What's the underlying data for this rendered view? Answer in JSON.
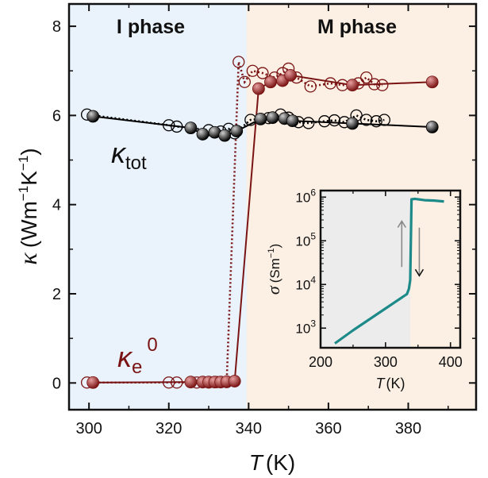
{
  "chart_data": [
    {
      "type": "scatter",
      "xlabel_var": "T",
      "xlabel_unit": "(K)",
      "ylabel_var": "κ",
      "ylabel_unit_open": "(Wm",
      "ylabel_unit_exp1": "−1",
      "ylabel_unit_mid": "K",
      "ylabel_unit_exp2": "−1",
      "ylabel_unit_close": ")",
      "xlim": [
        295,
        397
      ],
      "ylim": [
        -0.6,
        8.5
      ],
      "xticks": [
        300,
        320,
        340,
        360,
        380
      ],
      "yticks": [
        0,
        2,
        4,
        6,
        8
      ],
      "regions": [
        {
          "label": "I phase",
          "from": 295,
          "to": 339.5,
          "color": "#eaf3fc"
        },
        {
          "label": "M phase",
          "from": 339.5,
          "to": 397,
          "color": "#fcefe3"
        }
      ],
      "series": [
        {
          "name": "κtot",
          "label_main": "κ",
          "label_sub": "tot",
          "color": "#000000",
          "heating_filled": [
            {
              "x": 301,
              "y": 5.98
            },
            {
              "x": 325.5,
              "y": 5.72
            },
            {
              "x": 328.5,
              "y": 5.58
            },
            {
              "x": 331.5,
              "y": 5.62
            },
            {
              "x": 334,
              "y": 5.55
            },
            {
              "x": 337,
              "y": 5.65
            },
            {
              "x": 343,
              "y": 5.92
            },
            {
              "x": 346,
              "y": 5.95
            },
            {
              "x": 349,
              "y": 5.93
            },
            {
              "x": 351,
              "y": 5.88
            },
            {
              "x": 366,
              "y": 5.82
            },
            {
              "x": 386,
              "y": 5.74
            }
          ],
          "cooling_open": [
            {
              "x": 299.5,
              "y": 6.02
            },
            {
              "x": 320,
              "y": 5.78
            },
            {
              "x": 322,
              "y": 5.75
            },
            {
              "x": 330,
              "y": 5.67
            },
            {
              "x": 333,
              "y": 5.64
            },
            {
              "x": 335,
              "y": 5.7
            },
            {
              "x": 336.5,
              "y": 5.6
            },
            {
              "x": 340.5,
              "y": 5.9
            },
            {
              "x": 345,
              "y": 5.94
            },
            {
              "x": 348,
              "y": 6.02
            },
            {
              "x": 350,
              "y": 5.95
            },
            {
              "x": 352.5,
              "y": 5.85
            },
            {
              "x": 355,
              "y": 5.83
            },
            {
              "x": 359,
              "y": 5.87
            },
            {
              "x": 361.5,
              "y": 5.89
            },
            {
              "x": 364,
              "y": 5.85
            },
            {
              "x": 367,
              "y": 6.0
            },
            {
              "x": 369.5,
              "y": 5.9
            },
            {
              "x": 372,
              "y": 5.87
            },
            {
              "x": 374,
              "y": 5.9
            }
          ]
        },
        {
          "name": "κe0",
          "label_main": "κ",
          "label_sub": "e",
          "label_sup": "0",
          "color": "#7a1414",
          "heating_filled": [
            {
              "x": 301,
              "y": 0.01
            },
            {
              "x": 325.5,
              "y": 0.02
            },
            {
              "x": 328.5,
              "y": 0.02
            },
            {
              "x": 330,
              "y": 0.02
            },
            {
              "x": 331.5,
              "y": 0.02
            },
            {
              "x": 333,
              "y": 0.02
            },
            {
              "x": 334.5,
              "y": 0.03
            },
            {
              "x": 336.5,
              "y": 0.04
            },
            {
              "x": 342.5,
              "y": 6.6
            },
            {
              "x": 345.5,
              "y": 6.75
            },
            {
              "x": 348.5,
              "y": 6.78
            },
            {
              "x": 350.5,
              "y": 6.9
            },
            {
              "x": 366,
              "y": 6.68
            },
            {
              "x": 386,
              "y": 6.75
            }
          ],
          "cooling_open": [
            {
              "x": 299.5,
              "y": 0.01
            },
            {
              "x": 320,
              "y": 0.01
            },
            {
              "x": 322,
              "y": 0.01
            },
            {
              "x": 327,
              "y": 0.01
            },
            {
              "x": 330,
              "y": 0.01
            },
            {
              "x": 332,
              "y": 0.02
            },
            {
              "x": 334.5,
              "y": 0.02
            },
            {
              "x": 337.5,
              "y": 7.2
            },
            {
              "x": 339,
              "y": 6.75
            },
            {
              "x": 341,
              "y": 7.0
            },
            {
              "x": 343.5,
              "y": 6.95
            },
            {
              "x": 346.5,
              "y": 6.85
            },
            {
              "x": 348.5,
              "y": 6.95
            },
            {
              "x": 350,
              "y": 7.05
            },
            {
              "x": 352,
              "y": 6.85
            },
            {
              "x": 355.5,
              "y": 6.65
            },
            {
              "x": 360.5,
              "y": 6.72
            },
            {
              "x": 363.5,
              "y": 6.68
            },
            {
              "x": 367.5,
              "y": 6.72
            },
            {
              "x": 369.5,
              "y": 6.85
            },
            {
              "x": 371.5,
              "y": 6.7
            },
            {
              "x": 373.5,
              "y": 6.68
            }
          ]
        }
      ]
    },
    {
      "type": "line",
      "role": "inset",
      "xlabel_var": "T",
      "xlabel_unit": "(K)",
      "ylabel_var": "σ",
      "ylabel_unit_open": "(Sm",
      "ylabel_unit_exp": "−1",
      "ylabel_unit_close": ")",
      "yscale": "log",
      "xlim": [
        200,
        415
      ],
      "ylim_log10": [
        2.55,
        6.15
      ],
      "xticks": [
        200,
        300,
        400
      ],
      "yticks": [
        {
          "exp": 3,
          "base": "10",
          "power": "3"
        },
        {
          "exp": 4,
          "base": "10",
          "power": "4"
        },
        {
          "exp": 5,
          "base": "10",
          "power": "5"
        },
        {
          "exp": 6,
          "base": "10",
          "power": "6"
        }
      ],
      "shaded_to": 338,
      "shade_color": "#ececec",
      "line_color": "#1d8a8a",
      "arrow_color": "#888888",
      "curve_log10": [
        {
          "x": 222,
          "y": 2.65
        },
        {
          "x": 250,
          "y": 2.95
        },
        {
          "x": 280,
          "y": 3.25
        },
        {
          "x": 300,
          "y": 3.45
        },
        {
          "x": 320,
          "y": 3.65
        },
        {
          "x": 333,
          "y": 3.78
        },
        {
          "x": 336,
          "y": 3.9
        },
        {
          "x": 338,
          "y": 4.1
        },
        {
          "x": 339,
          "y": 5.0
        },
        {
          "x": 340,
          "y": 5.95
        },
        {
          "x": 345,
          "y": 5.96
        },
        {
          "x": 360,
          "y": 5.93
        },
        {
          "x": 375,
          "y": 5.92
        },
        {
          "x": 390,
          "y": 5.9
        }
      ],
      "arrows": [
        {
          "x": 325,
          "from_log10": 4.4,
          "to_log10": 5.45
        },
        {
          "x": 352,
          "from_log10": 5.3,
          "to_log10": 4.2
        }
      ]
    }
  ]
}
